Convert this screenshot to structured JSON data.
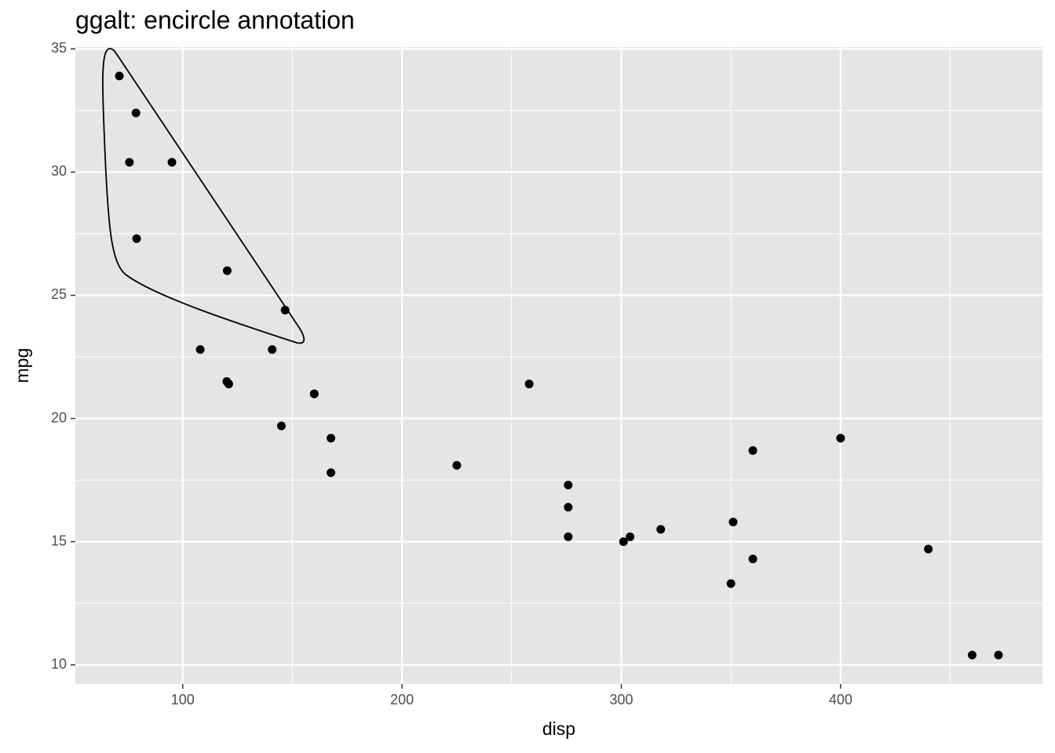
{
  "chart_data": {
    "type": "scatter",
    "title": "ggalt: encircle annotation",
    "x_label": "disp",
    "y_label": "mpg",
    "x": [
      160,
      160,
      108,
      258,
      360,
      225,
      360,
      146.7,
      140.8,
      167.6,
      167.6,
      275.8,
      275.8,
      275.8,
      472,
      460,
      440,
      78.7,
      75.7,
      71.1,
      120.1,
      318,
      304,
      350,
      400,
      79,
      120.3,
      95.1,
      351,
      145,
      301,
      121
    ],
    "y": [
      21,
      21,
      22.8,
      21.4,
      18.7,
      18.1,
      14.3,
      24.4,
      22.8,
      19.2,
      17.8,
      16.4,
      17.3,
      15.2,
      10.4,
      10.4,
      14.7,
      32.4,
      30.4,
      33.9,
      21.5,
      15.5,
      15.2,
      13.3,
      19.2,
      27.3,
      26,
      30.4,
      15.8,
      19.7,
      15,
      21.4
    ],
    "color": "#000000",
    "xlim": [
      51.055,
      492.045
    ],
    "xticks": [
      100,
      200,
      300,
      400
    ],
    "ylim": [
      9.225,
      35.075
    ],
    "yticks": [
      10,
      15,
      20,
      25,
      30,
      35
    ],
    "grid": true
  }
}
